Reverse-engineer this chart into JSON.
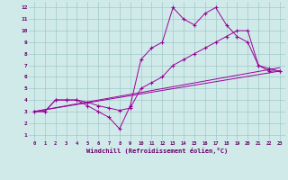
{
  "bg_color": "#d0eaea",
  "line_color": "#990099",
  "grid_color": "#a0c8c8",
  "xlabel": "Windchill (Refroidissement éolien,°C)",
  "ylabel_ticks": [
    1,
    2,
    3,
    4,
    5,
    6,
    7,
    8,
    9,
    10,
    11,
    12
  ],
  "xlabel_ticks": [
    0,
    1,
    2,
    3,
    4,
    5,
    6,
    7,
    8,
    9,
    10,
    11,
    12,
    13,
    14,
    15,
    16,
    17,
    18,
    19,
    20,
    21,
    22,
    23
  ],
  "xlim": [
    -0.5,
    23.5
  ],
  "ylim": [
    0.5,
    12.5
  ],
  "line1_x": [
    0,
    1,
    2,
    3,
    4,
    5,
    6,
    7,
    8,
    9,
    10,
    11,
    12,
    13,
    14,
    15,
    16,
    17,
    18,
    19,
    20,
    21,
    22,
    23
  ],
  "line1_y": [
    3.0,
    3.0,
    4.0,
    4.0,
    4.0,
    3.5,
    3.0,
    2.5,
    1.5,
    3.5,
    7.5,
    8.5,
    9.0,
    12.0,
    11.0,
    10.5,
    11.5,
    12.0,
    10.5,
    9.5,
    9.0,
    7.0,
    6.5,
    6.5
  ],
  "line2_x": [
    0,
    1,
    2,
    3,
    4,
    5,
    6,
    7,
    8,
    9,
    10,
    11,
    12,
    13,
    14,
    15,
    16,
    17,
    18,
    19,
    20,
    21,
    22,
    23
  ],
  "line2_y": [
    3.0,
    3.0,
    4.0,
    4.0,
    4.0,
    3.8,
    3.5,
    3.3,
    3.1,
    3.3,
    5.0,
    5.5,
    6.0,
    7.0,
    7.5,
    8.0,
    8.5,
    9.0,
    9.5,
    10.0,
    10.0,
    7.0,
    6.7,
    6.5
  ],
  "line3_x": [
    0,
    23
  ],
  "line3_y": [
    3.0,
    6.5
  ],
  "line4_x": [
    0,
    23
  ],
  "line4_y": [
    3.0,
    6.8
  ]
}
